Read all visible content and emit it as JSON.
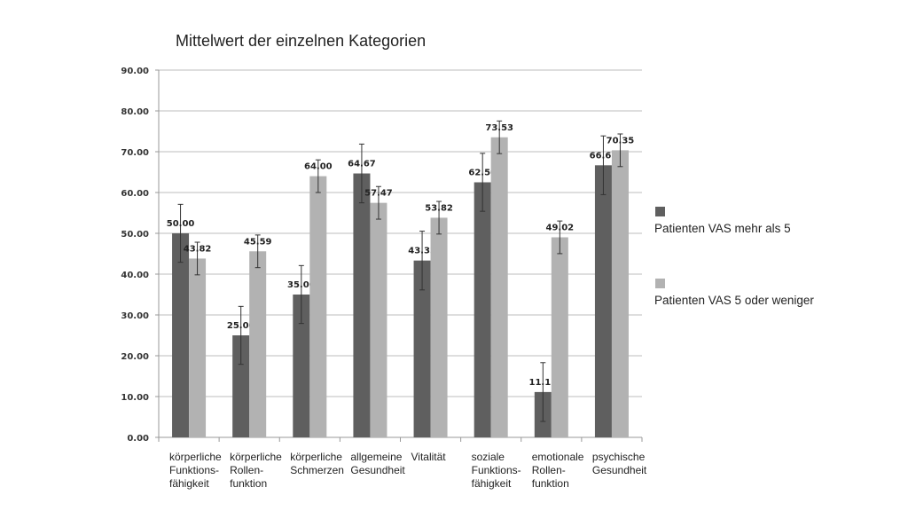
{
  "chart_data": {
    "type": "bar",
    "title": "Mittelwert der einzelnen Kategorien",
    "xlabel": "",
    "ylabel": "",
    "ylim": [
      0,
      90
    ],
    "yticks": [
      "0.00",
      "10.00",
      "20.00",
      "30.00",
      "40.00",
      "50.00",
      "60.00",
      "70.00",
      "80.00",
      "90.00"
    ],
    "grid": true,
    "legend_position": "right",
    "categories": [
      "körperliche\nFunktions-\nfähigkeit",
      "körperliche\nRollen-\nfunktion",
      "körperliche\nSchmerzen",
      "allgemeine\nGesundheit",
      "Vitalität",
      "soziale\nFunktions-\nfähigkeit",
      "emotionale\nRollen-\nfunktion",
      "psychische\nGesundheit"
    ],
    "series": [
      {
        "name": "Patienten VAS mehr als 5",
        "color": "#5f5f5f",
        "values": [
          50.0,
          25.0,
          35.0,
          64.67,
          43.33,
          62.5,
          11.11,
          66.67
        ],
        "labels": [
          "50.00",
          "25.00",
          "35.00",
          "64.67",
          "43.33",
          "62.50",
          "11.11",
          "66.67"
        ],
        "error": [
          7.1,
          7.1,
          7.1,
          7.2,
          7.2,
          7.1,
          7.2,
          7.2
        ]
      },
      {
        "name": "Patienten VAS 5 oder weniger",
        "color": "#b2b2b2",
        "values": [
          43.82,
          45.59,
          64.0,
          57.47,
          53.82,
          73.53,
          49.02,
          70.35
        ],
        "labels": [
          "43.82",
          "45.59",
          "64.00",
          "57.47",
          "53.82",
          "73.53",
          "49.02",
          "70.35"
        ],
        "error": [
          4.0,
          4.0,
          4.0,
          4.0,
          4.0,
          4.0,
          4.0,
          4.0
        ]
      }
    ]
  }
}
